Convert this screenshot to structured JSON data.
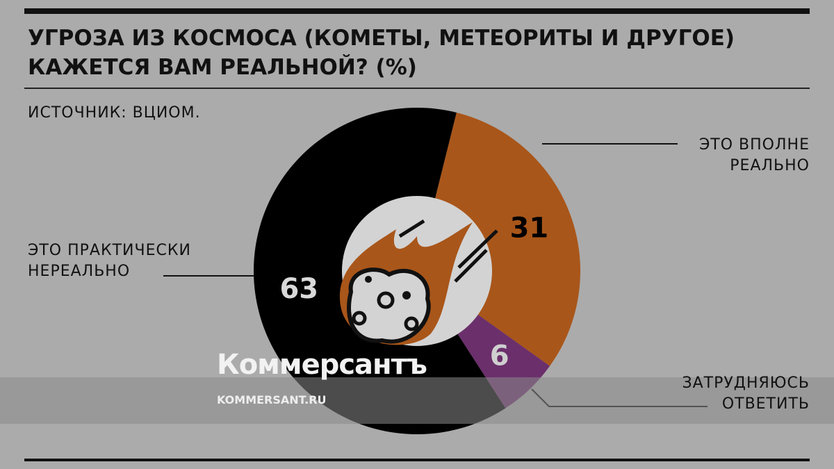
{
  "chart_data": {
    "type": "pie",
    "title": "УГРОЗА ИЗ КОСМОСА (КОМЕТЫ, МЕТЕОРИТЫ И ДРУГОЕ) КАЖЕТСЯ ВАМ РЕАЛЬНОЙ? (%)",
    "source": "ИСТОЧНИК: ВЦИОМ.",
    "categories": [
      "ЭТО ВПОЛНЕ РЕАЛЬНО",
      "ЗАТРУДНЯЮСЬ ОТВЕТИТЬ",
      "ЭТО ПРАКТИЧЕСКИ НЕРЕАЛЬНО"
    ],
    "values": [
      31,
      6,
      63
    ],
    "colors": [
      "#a9561a",
      "#6b2f6b",
      "#000000"
    ],
    "label_colors": [
      "#000000",
      "#cfcfcf",
      "#d9d9d9"
    ],
    "donut": true
  },
  "watermark": {
    "brand": "Коммерсантъ",
    "url": "KOMMERSANT.RU"
  }
}
